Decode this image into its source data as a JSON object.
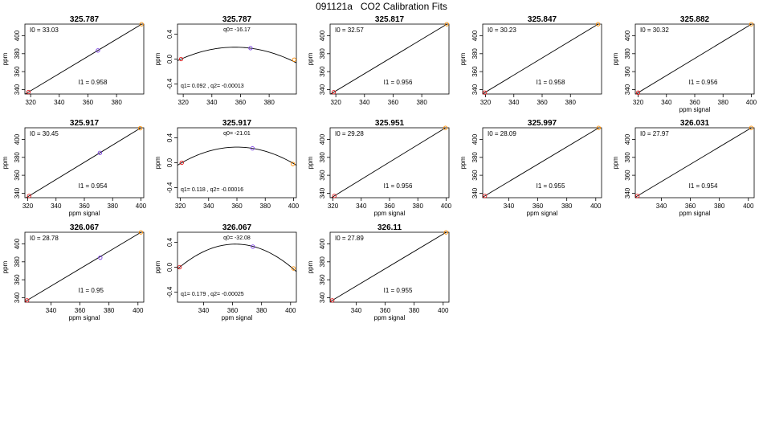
{
  "title": "091121a   CO2 Calibration Fits",
  "colors": {
    "low_point": "#e41a1c",
    "mid_point": "#7b3fe4",
    "high_point": "#ff8c00",
    "line": "#000000"
  },
  "chart_data": [
    {
      "type": "line",
      "fit": "linear",
      "title": "325.787",
      "xlabel": "",
      "ylabel": "ppm",
      "xlim": [
        316,
        399
      ],
      "ylim": [
        335,
        413
      ],
      "xticks": [
        320,
        340,
        360,
        380
      ],
      "yticks": [
        340,
        360,
        380,
        400
      ],
      "intercept_label": "I0 =  33.03",
      "slope_label": "I1 =  0.958",
      "points": [
        [
          318.5,
          337.2
        ],
        [
          367.0,
          383.6
        ],
        [
          397.5,
          412.9
        ]
      ]
    },
    {
      "type": "line",
      "fit": "quadratic",
      "title": "325.787",
      "xlabel": "",
      "ylabel": "ppm",
      "xlim": [
        316,
        399
      ],
      "ylim": [
        -0.56,
        0.56
      ],
      "xticks": [
        320,
        340,
        360,
        380
      ],
      "yticks": [
        -0.4,
        0.0,
        0.4
      ],
      "ytick_labels": [
        "-0.4",
        "0.0",
        "0.4"
      ],
      "q0_label": "q0= -16.17",
      "q_label": "q1= 0.092 , q2= -0.00013",
      "curve": {
        "vertex_x": 356,
        "peak": 0.19
      },
      "points": [
        [
          318.5,
          0.0
        ],
        [
          367.0,
          0.175
        ],
        [
          397.5,
          -0.01
        ]
      ]
    },
    {
      "type": "line",
      "fit": "linear",
      "title": "325.817",
      "xlabel": "",
      "ylabel": "ppm",
      "xlim": [
        316,
        399
      ],
      "ylim": [
        335,
        413
      ],
      "xticks": [
        320,
        340,
        360,
        380
      ],
      "yticks": [
        340,
        360,
        380,
        400
      ],
      "intercept_label": "I0 =  32.57",
      "slope_label": "I1 =  0.956",
      "points": [
        [
          318.5,
          337.0
        ],
        [
          397.5,
          412.9
        ]
      ]
    },
    {
      "type": "line",
      "fit": "linear",
      "title": "325.847",
      "xlabel": "",
      "ylabel": "ppm",
      "xlim": [
        318,
        402
      ],
      "ylim": [
        335,
        413
      ],
      "xticks": [
        320,
        340,
        360,
        380
      ],
      "yticks": [
        340,
        360,
        380,
        400
      ],
      "intercept_label": "I0 =  30.23",
      "slope_label": "I1 =  0.958",
      "points": [
        [
          319.5,
          336.6
        ],
        [
          399.5,
          412.9
        ]
      ]
    },
    {
      "type": "line",
      "fit": "linear",
      "title": "325.882",
      "xlabel": "ppm signal",
      "ylabel": "ppm",
      "xlim": [
        318,
        402
      ],
      "ylim": [
        335,
        413
      ],
      "xticks": [
        320,
        340,
        360,
        380,
        400
      ],
      "yticks": [
        340,
        360,
        380,
        400
      ],
      "intercept_label": "I0 =  30.32",
      "slope_label": "I1 =  0.956",
      "points": [
        [
          320.0,
          336.5
        ],
        [
          400.0,
          412.9
        ]
      ]
    },
    {
      "type": "line",
      "fit": "linear",
      "title": "325.917",
      "xlabel": "ppm signal",
      "ylabel": "ppm",
      "xlim": [
        318,
        402
      ],
      "ylim": [
        335,
        413
      ],
      "xticks": [
        320,
        340,
        360,
        380,
        400
      ],
      "yticks": [
        340,
        360,
        380,
        400
      ],
      "intercept_label": "I0 =  30.45",
      "slope_label": "I1 =  0.954",
      "points": [
        [
          321.0,
          337.0
        ],
        [
          371.0,
          385.0
        ],
        [
          399.5,
          412.5
        ]
      ]
    },
    {
      "type": "line",
      "fit": "quadratic",
      "title": "325.917",
      "xlabel": "",
      "ylabel": "ppm",
      "xlim": [
        318,
        402
      ],
      "ylim": [
        -0.56,
        0.56
      ],
      "xticks": [
        320,
        340,
        360,
        380,
        400
      ],
      "yticks": [
        -0.4,
        0.0,
        0.4
      ],
      "ytick_labels": [
        "-0.4",
        "0.0",
        "0.4"
      ],
      "q0_label": "q0= -21.01",
      "q_label": "q1= 0.118 , q2= -0.00016",
      "curve": {
        "vertex_x": 360,
        "peak": 0.25
      },
      "points": [
        [
          321.0,
          0.0
        ],
        [
          371.0,
          0.23
        ],
        [
          399.5,
          -0.02
        ]
      ]
    },
    {
      "type": "line",
      "fit": "linear",
      "title": "325.951",
      "xlabel": "ppm signal",
      "ylabel": "ppm",
      "xlim": [
        318,
        402
      ],
      "ylim": [
        335,
        413
      ],
      "xticks": [
        320,
        340,
        360,
        380,
        400
      ],
      "yticks": [
        340,
        360,
        380,
        400
      ],
      "intercept_label": "I0 =  29.28",
      "slope_label": "I1 =  0.956",
      "points": [
        [
          321.0,
          337.0
        ],
        [
          399.5,
          412.9
        ]
      ]
    },
    {
      "type": "line",
      "fit": "linear",
      "title": "325.997",
      "xlabel": "ppm signal",
      "ylabel": "ppm",
      "xlim": [
        322,
        404
      ],
      "ylim": [
        335,
        413
      ],
      "xticks": [
        340,
        360,
        380,
        400
      ],
      "yticks": [
        340,
        360,
        380,
        400
      ],
      "intercept_label": "I0 =  28.09",
      "slope_label": "I1 =  0.955",
      "points": [
        [
          323.5,
          337.0
        ],
        [
          402.0,
          412.9
        ]
      ]
    },
    {
      "type": "line",
      "fit": "linear",
      "title": "326.031",
      "xlabel": "ppm signal",
      "ylabel": "ppm",
      "xlim": [
        322,
        404
      ],
      "ylim": [
        335,
        413
      ],
      "xticks": [
        340,
        360,
        380,
        400
      ],
      "yticks": [
        340,
        360,
        380,
        400
      ],
      "intercept_label": "I0 =  27.97",
      "slope_label": "I1 =  0.954",
      "points": [
        [
          323.5,
          337.0
        ],
        [
          402.0,
          412.9
        ]
      ]
    },
    {
      "type": "line",
      "fit": "linear",
      "title": "326.067",
      "xlabel": "ppm signal",
      "ylabel": "ppm",
      "xlim": [
        322,
        404
      ],
      "ylim": [
        335,
        413
      ],
      "xticks": [
        340,
        360,
        380,
        400
      ],
      "yticks": [
        340,
        360,
        380,
        400
      ],
      "intercept_label": "I0 =  28.78",
      "slope_label": "I1 =  0.95",
      "points": [
        [
          323.5,
          337.0
        ],
        [
          374.0,
          384.6
        ],
        [
          402.0,
          412.9
        ]
      ]
    },
    {
      "type": "line",
      "fit": "quadratic",
      "title": "326.067",
      "xlabel": "ppm signal",
      "ylabel": "ppm",
      "xlim": [
        322,
        404
      ],
      "ylim": [
        -0.56,
        0.56
      ],
      "xticks": [
        340,
        360,
        380,
        400
      ],
      "yticks": [
        -0.4,
        0.0,
        0.4
      ],
      "ytick_labels": [
        "-0.4",
        "0.0",
        "0.4"
      ],
      "q0_label": "q0= -32.08",
      "q_label": "q1= 0.179 , q2= -0.00025",
      "curve": {
        "vertex_x": 362,
        "peak": 0.37
      },
      "points": [
        [
          323.5,
          0.0
        ],
        [
          374.0,
          0.33
        ],
        [
          402.0,
          -0.02
        ]
      ]
    },
    {
      "type": "line",
      "fit": "linear",
      "title": "326.11",
      "xlabel": "ppm signal",
      "ylabel": "ppm",
      "xlim": [
        322,
        404
      ],
      "ylim": [
        335,
        413
      ],
      "xticks": [
        340,
        360,
        380,
        400
      ],
      "yticks": [
        340,
        360,
        380,
        400
      ],
      "intercept_label": "I0 =  27.89",
      "slope_label": "I1 =  0.955",
      "points": [
        [
          323.5,
          337.0
        ],
        [
          402.0,
          412.9
        ]
      ]
    }
  ]
}
